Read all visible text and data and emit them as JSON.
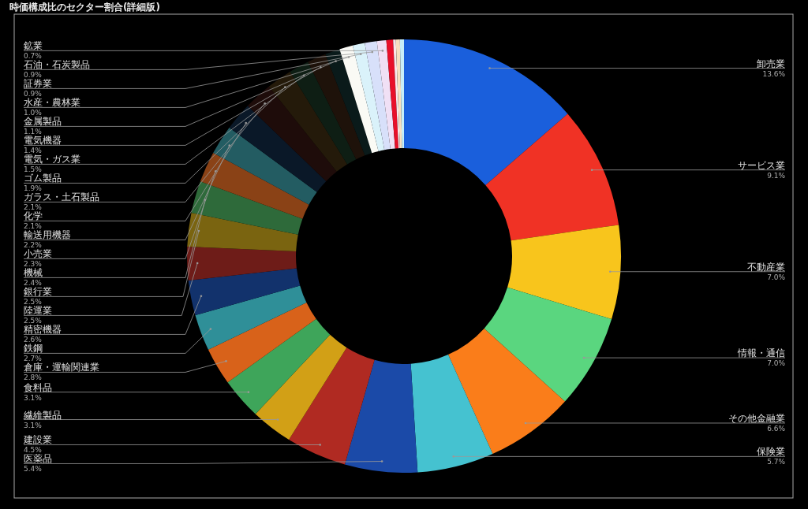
{
  "chart_data": {
    "type": "donut",
    "title": "時価構成比のセクター割合(詳細版)",
    "categories": [
      "卸売業",
      "サービス業",
      "不動産業",
      "情報・通信",
      "その他金融業",
      "保険業",
      "医薬品",
      "建設業",
      "繊維製品",
      "食料品",
      "倉庫・運輸関連業",
      "鉄鋼",
      "精密機器",
      "陸運業",
      "銀行業",
      "機械",
      "小売業",
      "輸送用機器",
      "化学",
      "ガラス・土石製品",
      "ゴム製品",
      "電気・ガス業",
      "電気機器",
      "金属製品",
      "水産・農林業",
      "証券業",
      "石油・石炭製品",
      "鉱業",
      null,
      null,
      null,
      null
    ],
    "values": [
      13.6,
      9.1,
      7.0,
      7.0,
      6.6,
      5.7,
      5.4,
      4.5,
      3.1,
      3.1,
      2.8,
      2.7,
      2.6,
      2.5,
      2.5,
      2.4,
      2.3,
      2.2,
      2.1,
      2.1,
      1.9,
      1.5,
      1.4,
      1.1,
      1.0,
      0.9,
      0.9,
      0.7,
      0.5,
      0.2,
      0.3,
      0.3
    ],
    "value_labels": [
      "13.6%",
      "9.1%",
      "7.0%",
      "7.0%",
      "6.6%",
      "5.7%",
      "5.4%",
      "4.5%",
      "3.1%",
      "3.1%",
      "2.8%",
      "2.7%",
      "2.6%",
      "2.5%",
      "2.5%",
      "2.4%",
      "2.3%",
      "2.2%",
      "2.1%",
      "2.1%",
      "1.9%",
      "1.5%",
      "1.4%",
      "1.1%",
      "1.0%",
      "0.9%",
      "0.9%",
      "0.7%",
      null,
      null,
      null,
      null
    ],
    "colors": [
      "#1a5fdc",
      "#f03225",
      "#f8c51c",
      "#5ad67f",
      "#fa7d1a",
      "#45c2d0",
      "#1b4aa8",
      "#b02a22",
      "#d2a016",
      "#3ea55a",
      "#d8621a",
      "#2f8f98",
      "#12326c",
      "#6e1c18",
      "#7a6410",
      "#2e6a3a",
      "#8a4216",
      "#235c62",
      "#0a1828",
      "#1e0c0a",
      "#241a0a",
      "#0e1e14",
      "#1e120a",
      "#0a1a1a",
      "#fafaf5",
      "#daf2fa",
      "#d8e0fa",
      "#f0e0f5",
      "#e8102a",
      "#fbe6ea",
      "#f8e0c0",
      "#c8eef8"
    ]
  }
}
